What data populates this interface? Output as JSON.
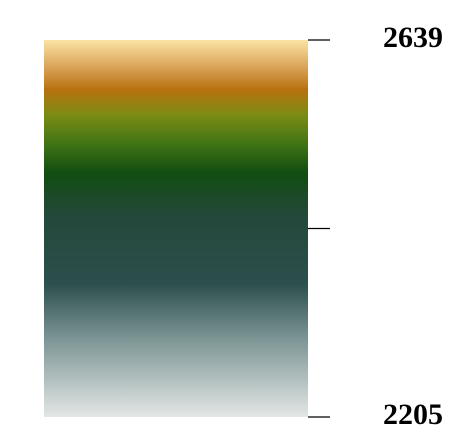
{
  "chart_data": {
    "type": "colorbar",
    "orientation": "vertical",
    "range": [
      2205,
      2639
    ],
    "ticks": [
      {
        "value": 2639,
        "label": "2639"
      },
      {
        "value": 2422,
        "label": ""
      },
      {
        "value": 2205,
        "label": "2205"
      }
    ],
    "colormap": [
      {
        "value": 2639,
        "color": "#fbe3a3"
      },
      {
        "value": 2607,
        "color": "#d9a257"
      },
      {
        "value": 2582,
        "color": "#b8710f"
      },
      {
        "value": 2553,
        "color": "#7c8c14"
      },
      {
        "value": 2519,
        "color": "#3f7414"
      },
      {
        "value": 2486,
        "color": "#124d12"
      },
      {
        "value": 2436,
        "color": "#24483a"
      },
      {
        "value": 2358,
        "color": "#2d4f4d"
      },
      {
        "value": 2296,
        "color": "#7a9493"
      },
      {
        "value": 2205,
        "color": "#e3e7e6"
      }
    ]
  }
}
